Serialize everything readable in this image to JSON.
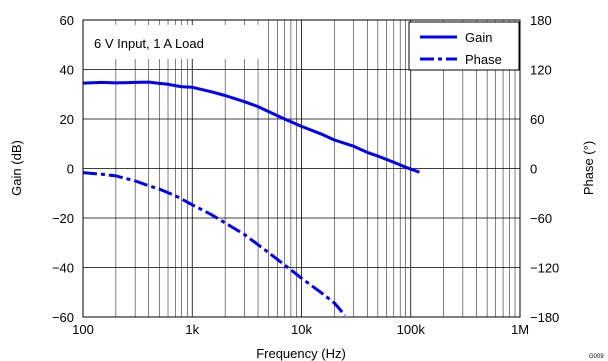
{
  "chart_data": {
    "type": "line",
    "annotation": "6 V Input, 1 A Load",
    "xlabel": "Frequency (Hz)",
    "ylabel": "Gain (dB)",
    "y2label": "Phase (°)",
    "code": "G009",
    "x_scale": "log",
    "xlim": [
      100,
      1000000
    ],
    "ylim": [
      -60,
      60
    ],
    "y2lim": [
      -180,
      180
    ],
    "x_ticks": [
      {
        "value": 100,
        "label": "100"
      },
      {
        "value": 1000,
        "label": "1k"
      },
      {
        "value": 10000,
        "label": "10k"
      },
      {
        "value": 100000,
        "label": "100k"
      },
      {
        "value": 1000000,
        "label": "1M"
      }
    ],
    "y_ticks": [
      {
        "value": 60,
        "label": "60"
      },
      {
        "value": 40,
        "label": "40"
      },
      {
        "value": 20,
        "label": "20"
      },
      {
        "value": 0,
        "label": "0"
      },
      {
        "value": -20,
        "label": "−20"
      },
      {
        "value": -40,
        "label": "−40"
      },
      {
        "value": -60,
        "label": "−60"
      }
    ],
    "y2_ticks": [
      {
        "value": 180,
        "label": "180"
      },
      {
        "value": 120,
        "label": "120"
      },
      {
        "value": 60,
        "label": "60"
      },
      {
        "value": 0,
        "label": "0"
      },
      {
        "value": -60,
        "label": "−60"
      },
      {
        "value": -120,
        "label": "−120"
      },
      {
        "value": -180,
        "label": "−180"
      }
    ],
    "grid": true,
    "legend_position": "top-right",
    "series": [
      {
        "name": "Gain",
        "axis": "left",
        "style": "solid",
        "color": "#0000ff",
        "points": [
          [
            100,
            34.5
          ],
          [
            150,
            34.8
          ],
          [
            200,
            34.6
          ],
          [
            300,
            34.8
          ],
          [
            400,
            34.9
          ],
          [
            500,
            34.4
          ],
          [
            600,
            34.0
          ],
          [
            700,
            33.5
          ],
          [
            800,
            33.0
          ],
          [
            1000,
            32.8
          ],
          [
            1500,
            31.0
          ],
          [
            2000,
            29.5
          ],
          [
            3000,
            27.0
          ],
          [
            4000,
            25.0
          ],
          [
            5000,
            23.0
          ],
          [
            7000,
            20.0
          ],
          [
            10000,
            17.0
          ],
          [
            15000,
            14.0
          ],
          [
            20000,
            11.5
          ],
          [
            30000,
            9.0
          ],
          [
            40000,
            6.5
          ],
          [
            50000,
            5.0
          ],
          [
            70000,
            2.5
          ],
          [
            90000,
            0.5
          ],
          [
            120000,
            -1.5
          ]
        ]
      },
      {
        "name": "Phase",
        "axis": "right",
        "style": "dashed",
        "color": "#0000ff",
        "points": [
          [
            100,
            -5
          ],
          [
            150,
            -7
          ],
          [
            200,
            -9
          ],
          [
            300,
            -15
          ],
          [
            400,
            -21
          ],
          [
            500,
            -25
          ],
          [
            700,
            -33
          ],
          [
            1000,
            -44
          ],
          [
            1500,
            -56
          ],
          [
            2000,
            -66
          ],
          [
            3000,
            -80
          ],
          [
            5000,
            -102
          ],
          [
            7000,
            -117
          ],
          [
            10000,
            -133
          ],
          [
            15000,
            -150
          ],
          [
            20000,
            -163
          ],
          [
            25000,
            -178
          ]
        ]
      }
    ]
  }
}
